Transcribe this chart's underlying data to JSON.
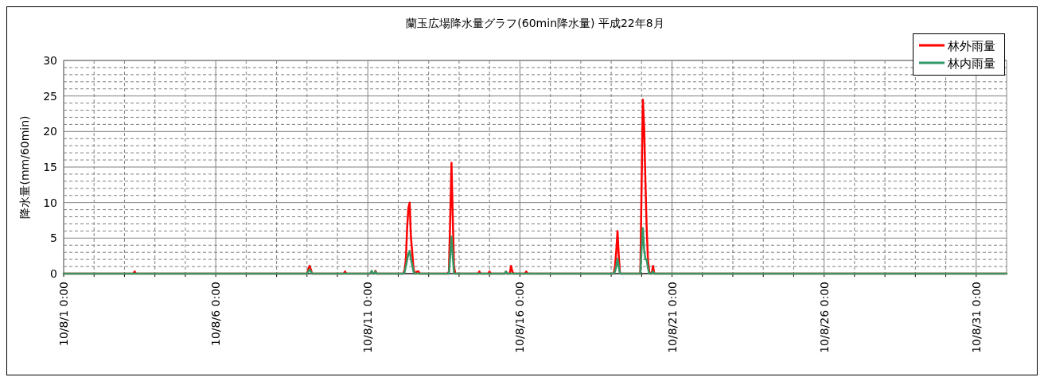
{
  "chart_data": {
    "type": "line",
    "title": "蘭玉広場降水量グラフ(60min降水量) 平成22年8月",
    "ylabel": "降水量(mm/60min)",
    "x": [
      "--08-01T00:00",
      "--08-03T07:00",
      "--08-03T08:00",
      "--08-03T09:00",
      "--08-09T00:00",
      "--08-09T01:00",
      "--08-09T02:00",
      "--08-09T03:00",
      "--08-09T04:00",
      "--08-10T05:00",
      "--08-10T06:00",
      "--08-10T07:00",
      "--08-11T02:00",
      "--08-11T03:00",
      "--08-11T04:00",
      "--08-11T05:00",
      "--08-11T06:00",
      "--08-11T07:00",
      "--08-12T04:00",
      "--08-12T05:00",
      "--08-12T06:00",
      "--08-12T07:00",
      "--08-12T08:00",
      "--08-12T09:00",
      "--08-12T10:00",
      "--08-12T11:00",
      "--08-12T12:00",
      "--08-12T13:00",
      "--08-12T15:00",
      "--08-12T16:00",
      "--08-12T17:00",
      "--08-13T15:00",
      "--08-13T16:00",
      "--08-13T17:00",
      "--08-13T18:00",
      "--08-13T19:00",
      "--08-13T20:00",
      "--08-13T21:00",
      "--08-14T15:00",
      "--08-14T16:00",
      "--08-14T17:00",
      "--08-14T23:00",
      "--08-15T00:00",
      "--08-15T01:00",
      "--08-15T12:00",
      "--08-15T13:00",
      "--08-15T14:00",
      "--08-15T16:00",
      "--08-15T17:00",
      "--08-15T18:00",
      "--08-15T19:00",
      "--08-16T04:00",
      "--08-16T05:00",
      "--08-16T06:00",
      "--08-19T02:00",
      "--08-19T03:00",
      "--08-19T04:00",
      "--08-19T05:00",
      "--08-19T06:00",
      "--08-19T07:00",
      "--08-19T23:00",
      "--08-20T00:00",
      "--08-20T01:00",
      "--08-20T02:00",
      "--08-20T03:00",
      "--08-20T04:00",
      "--08-20T05:00",
      "--08-20T06:00",
      "--08-20T07:00",
      "--08-20T08:00",
      "--08-20T09:00",
      "--08-20T10:00",
      "--09-01T00:00"
    ],
    "series": [
      {
        "name": "林外雨量",
        "color": "#ff0000",
        "values": [
          0,
          0,
          0.3,
          0,
          0,
          0.6,
          1.1,
          0.6,
          0,
          0,
          0.3,
          0,
          0,
          0.3,
          0,
          0,
          0.4,
          0,
          0,
          0.5,
          1.9,
          6.4,
          9.2,
          10.0,
          5.1,
          3.1,
          0.8,
          0,
          0.3,
          0.3,
          0,
          0,
          0.3,
          7.7,
          15.6,
          8.0,
          1.0,
          0,
          0,
          0.3,
          0,
          0,
          0.3,
          0,
          0,
          0.3,
          0,
          0,
          1.1,
          0.3,
          0,
          0,
          0.3,
          0,
          0,
          1.0,
          3.1,
          6.0,
          2.5,
          0,
          0,
          12.2,
          24.5,
          20.6,
          13.1,
          6.5,
          2.0,
          0.3,
          0,
          0,
          1.1,
          0,
          0
        ]
      },
      {
        "name": "林内雨量",
        "color": "#339966",
        "values": [
          0,
          0,
          0,
          0,
          0,
          0.3,
          0.6,
          0.3,
          0,
          0,
          0,
          0,
          0,
          0.4,
          0,
          0,
          0.3,
          0,
          0,
          0.2,
          1.0,
          1.9,
          2.8,
          3.2,
          2.1,
          1.2,
          0.3,
          0,
          0,
          0,
          0,
          0,
          0,
          2.5,
          5.2,
          2.5,
          0,
          0,
          0,
          0,
          0,
          0,
          0,
          0,
          0,
          0.3,
          0,
          0,
          0,
          0,
          0,
          0,
          0,
          0,
          0,
          0.3,
          1.0,
          2.1,
          1.0,
          0,
          0,
          3.4,
          6.4,
          3.4,
          2.0,
          2.0,
          0.8,
          0,
          0,
          0,
          0.3,
          0,
          0
        ]
      }
    ],
    "xlim": [
      "--08-01T00:00",
      "--09-01T00:00"
    ],
    "xticks": [
      {
        "value": "--08-01",
        "label": "10/8/1 0:00"
      },
      {
        "value": "--08-02",
        "label": null
      },
      {
        "value": "--08-03",
        "label": null
      },
      {
        "value": "--08-04",
        "label": null
      },
      {
        "value": "--08-05",
        "label": null
      },
      {
        "value": "--08-06",
        "label": "10/8/6 0:00"
      },
      {
        "value": "--08-07",
        "label": null
      },
      {
        "value": "--08-08",
        "label": null
      },
      {
        "value": "--08-09",
        "label": null
      },
      {
        "value": "--08-10",
        "label": null
      },
      {
        "value": "--08-11",
        "label": "10/8/11 0:00"
      },
      {
        "value": "--08-12",
        "label": null
      },
      {
        "value": "--08-13",
        "label": null
      },
      {
        "value": "--08-14",
        "label": null
      },
      {
        "value": "--08-15",
        "label": null
      },
      {
        "value": "--08-16",
        "label": "10/8/16 0:00"
      },
      {
        "value": "--08-17",
        "label": null
      },
      {
        "value": "--08-18",
        "label": null
      },
      {
        "value": "--08-19",
        "label": null
      },
      {
        "value": "--08-20",
        "label": null
      },
      {
        "value": "--08-21",
        "label": "10/8/21 0:00"
      },
      {
        "value": "--08-22",
        "label": null
      },
      {
        "value": "--08-23",
        "label": null
      },
      {
        "value": "--08-24",
        "label": null
      },
      {
        "value": "--08-25",
        "label": null
      },
      {
        "value": "--08-26",
        "label": "10/8/26 0:00"
      },
      {
        "value": "--08-27",
        "label": null
      },
      {
        "value": "--08-28",
        "label": null
      },
      {
        "value": "--08-29",
        "label": null
      },
      {
        "value": "--08-30",
        "label": null
      },
      {
        "value": "--08-31",
        "label": "10/8/31 0:00"
      }
    ],
    "ylim": [
      0,
      30
    ],
    "yticks": [
      0,
      {
        "value": 1,
        "label": null
      },
      {
        "value": 2,
        "label": null
      },
      {
        "value": 3,
        "label": null
      },
      {
        "value": 4,
        "label": null
      },
      5,
      {
        "value": 6,
        "label": null
      },
      {
        "value": 7,
        "label": null
      },
      {
        "value": 8,
        "label": null
      },
      {
        "value": 9,
        "label": null
      },
      10,
      {
        "value": 11,
        "label": null
      },
      {
        "value": 12,
        "label": null
      },
      {
        "value": 13,
        "label": null
      },
      {
        "value": 14,
        "label": null
      },
      15,
      {
        "value": 16,
        "label": null
      },
      {
        "value": 17,
        "label": null
      },
      {
        "value": 18,
        "label": null
      },
      {
        "value": 19,
        "label": null
      },
      20,
      {
        "value": 21,
        "label": null
      },
      {
        "value": 22,
        "label": null
      },
      {
        "value": 23,
        "label": null
      },
      {
        "value": 24,
        "label": null
      },
      25,
      {
        "value": 26,
        "label": null
      },
      {
        "value": 27,
        "label": null
      },
      {
        "value": 28,
        "label": null
      },
      {
        "value": 29,
        "label": null
      },
      30
    ],
    "grid": true,
    "legend": "top right",
    "line_style": "solid"
  }
}
